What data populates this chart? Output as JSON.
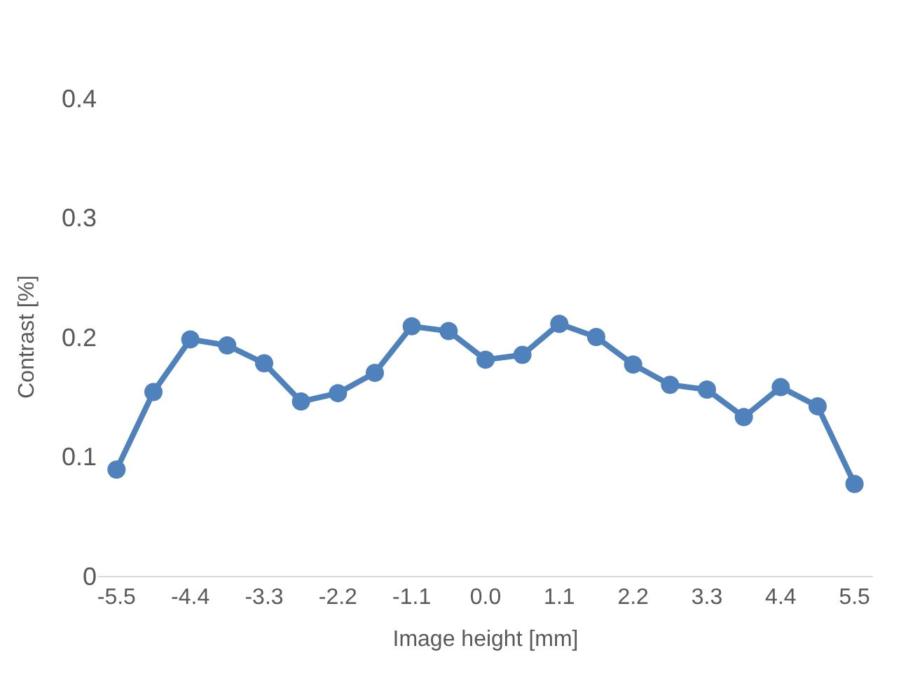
{
  "chart_data": {
    "type": "line",
    "xlabel": "Image height [mm]",
    "ylabel": "Contrast [%]",
    "categories": [
      "-5.5",
      null,
      "-4.4",
      null,
      "-3.3",
      null,
      "-2.2",
      null,
      "-1.1",
      null,
      "0.0",
      null,
      "1.1",
      null,
      "2.2",
      null,
      "3.3",
      null,
      "4.4",
      null,
      "5.5"
    ],
    "series": [
      {
        "color": "#4f81bd",
        "values": [
          0.089,
          0.154,
          0.198,
          0.193,
          0.178,
          0.146,
          0.153,
          0.17,
          0.209,
          0.205,
          0.181,
          0.185,
          0.211,
          0.2,
          0.177,
          0.16,
          0.156,
          0.133,
          0.158,
          0.142,
          0.077
        ]
      }
    ],
    "ylim": [
      0,
      0.4
    ],
    "yticks": [
      0,
      0.1,
      0.2,
      0.3,
      0.4
    ],
    "legend": false,
    "marker": "circle",
    "line_style": "solid"
  }
}
